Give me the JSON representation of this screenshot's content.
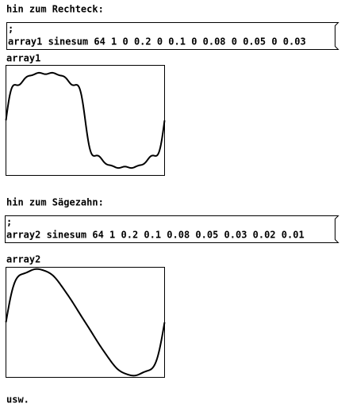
{
  "blocks": [
    {
      "comment": "hin zum Rechteck:",
      "message": {
        "lines": [
          ";",
          "array1 sinesum 64 1 0 0.2 0 0.1 0 0.08 0 0.05 0 0.03"
        ]
      },
      "array_label": "array1"
    },
    {
      "comment": "hin zum Sägezahn:",
      "message": {
        "lines": [
          ";",
          "array2 sinesum 64 1 0.2 0.1 0.08 0.05 0.03 0.02 0.01"
        ]
      },
      "array_label": "array2"
    }
  ],
  "footer": "usw."
}
